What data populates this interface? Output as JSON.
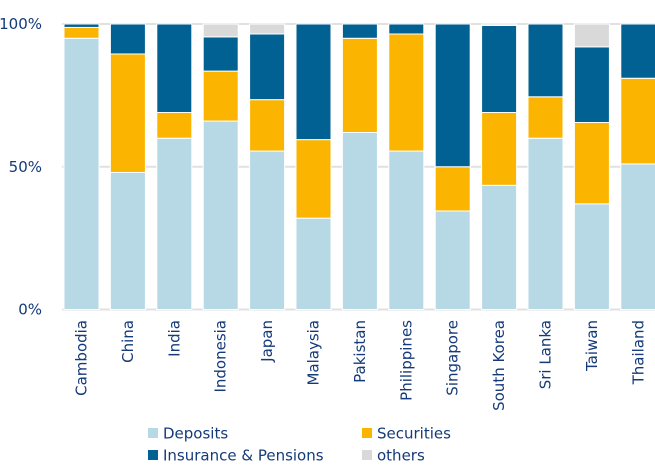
{
  "chart_data": {
    "type": "bar",
    "stacked": true,
    "categories": [
      "Cambodia",
      "China",
      "India",
      "Indonesia",
      "Japan",
      "Malaysia",
      "Pakistan",
      "Philippines",
      "Singapore",
      "South Korea",
      "Sri Lanka",
      "Taiwan",
      "Thailand"
    ],
    "series": [
      {
        "name": "Deposits",
        "color": "#b6d9e5",
        "values": [
          95,
          48,
          60,
          66,
          55.5,
          32,
          62,
          55.5,
          34.5,
          43.5,
          60,
          37,
          51
        ]
      },
      {
        "name": "Securities",
        "color": "#fbb400",
        "values": [
          3.8,
          41.5,
          9,
          17.5,
          18,
          27.5,
          33,
          41,
          15.5,
          25.5,
          14.5,
          28.5,
          30
        ]
      },
      {
        "name": "Insurance & Pensions",
        "color": "#006192",
        "values": [
          1.2,
          10.5,
          31,
          12,
          23,
          40.5,
          5,
          3.5,
          50,
          30.5,
          25.5,
          26.5,
          19
        ]
      },
      {
        "name": "others",
        "color": "#d9d9d9",
        "values": [
          0,
          0,
          0,
          4.5,
          3.5,
          0,
          0,
          0,
          0,
          0.5,
          0,
          8,
          0
        ]
      }
    ],
    "yticks": [
      "0%",
      "50%",
      "100%"
    ],
    "ytick_values": [
      0,
      50,
      100
    ],
    "ylim": [
      0,
      100
    ],
    "grid": true,
    "legend_placement": "bottom",
    "title": "",
    "xlabel": "",
    "ylabel": ""
  }
}
